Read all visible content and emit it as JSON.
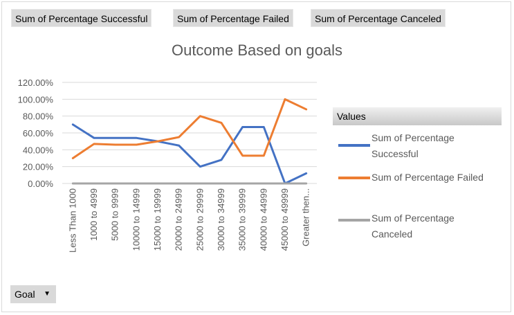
{
  "field_buttons": [
    "Sum of Percentage Successful",
    "Sum of Percentage Failed",
    "Sum of Percentage Canceled"
  ],
  "legend_header": "Values",
  "legend_labels": [
    "Sum of Percentage Successful",
    "Sum of Percentage Failed",
    "Sum of Percentage Canceled"
  ],
  "goal_button": "Goal",
  "colors": {
    "successful": "#4472c4",
    "failed": "#ed7d31",
    "canceled": "#a5a5a5",
    "grid": "#d9d9d9"
  },
  "chart_data": {
    "type": "line",
    "title": "Outcome Based on goals",
    "xlabel": "",
    "ylabel": "",
    "ylim": [
      0,
      120
    ],
    "yticks": [
      "0.00%",
      "20.00%",
      "40.00%",
      "60.00%",
      "80.00%",
      "100.00%",
      "120.00%"
    ],
    "grid": true,
    "legend_position": "right",
    "categories": [
      "Less Than 1000",
      "1000 to 4999",
      "5000 to 9999",
      "10000 to 14999",
      "15000 to 19999",
      "20000 to 24999",
      "25000 to 29999",
      "30000 to 34999",
      "35000 to 39999",
      "40000 to 44999",
      "45000 to 49999",
      "Greater then..."
    ],
    "series": [
      {
        "name": "Sum of Percentage Successful",
        "values": [
          70,
          54,
          54,
          54,
          50,
          45,
          20,
          28,
          67,
          67,
          0,
          12
        ]
      },
      {
        "name": "Sum of Percentage Failed",
        "values": [
          30,
          47,
          46,
          46,
          50,
          55,
          80,
          72,
          33,
          33,
          100,
          88
        ]
      },
      {
        "name": "Sum of Percentage Canceled",
        "values": [
          0,
          0,
          0,
          0,
          0,
          0,
          0,
          0,
          0,
          0,
          0,
          0
        ]
      }
    ]
  }
}
